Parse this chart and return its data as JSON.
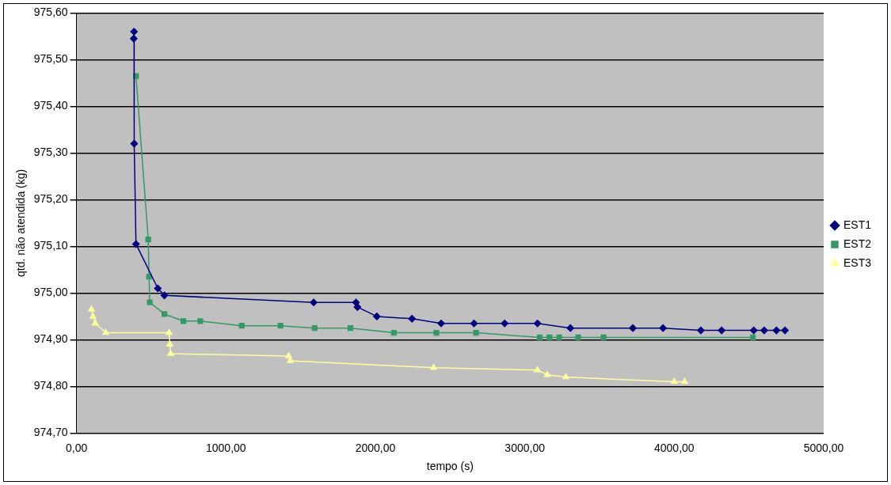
{
  "chart_data": {
    "type": "line",
    "xlabel": "tempo (s)",
    "ylabel": "qtd. não atendida (kg)",
    "xlim": [
      0,
      5000
    ],
    "ylim": [
      974.7,
      975.6
    ],
    "xticks": [
      {
        "value": 0,
        "label": "0,00"
      },
      {
        "value": 1000,
        "label": "1000,00"
      },
      {
        "value": 2000,
        "label": "2000,00"
      },
      {
        "value": 3000,
        "label": "3000,00"
      },
      {
        "value": 4000,
        "label": "4000,00"
      },
      {
        "value": 5000,
        "label": "5000,00"
      }
    ],
    "yticks": [
      {
        "value": 974.7,
        "label": "974,70"
      },
      {
        "value": 974.8,
        "label": "974,80"
      },
      {
        "value": 974.9,
        "label": "974,90"
      },
      {
        "value": 975.0,
        "label": "975,00"
      },
      {
        "value": 975.1,
        "label": "975,10"
      },
      {
        "value": 975.2,
        "label": "975,20"
      },
      {
        "value": 975.3,
        "label": "975,30"
      },
      {
        "value": 975.4,
        "label": "975,40"
      },
      {
        "value": 975.5,
        "label": "975,50"
      },
      {
        "value": 975.6,
        "label": "975,60"
      }
    ],
    "grid": "y",
    "legend": "right",
    "series": [
      {
        "name": "EST1",
        "color": "#000080",
        "marker": "diamond",
        "x": [
          383,
          385,
          386,
          398,
          544,
          588,
          1587,
          1870,
          1880,
          2010,
          2245,
          2440,
          2660,
          2865,
          3085,
          3305,
          3723,
          3925,
          4178,
          4317,
          4532,
          4602,
          4684,
          4741
        ],
        "values": [
          975.545,
          975.56,
          975.32,
          975.105,
          975.01,
          974.995,
          974.98,
          974.98,
          974.97,
          974.95,
          974.945,
          974.935,
          974.935,
          974.935,
          974.935,
          974.925,
          974.925,
          974.925,
          974.92,
          974.92,
          974.92,
          974.92,
          974.92,
          974.92
        ]
      },
      {
        "name": "EST2",
        "color": "#339966",
        "marker": "square",
        "x": [
          398,
          480,
          485,
          490,
          588,
          715,
          828,
          1106,
          1365,
          1593,
          1833,
          2124,
          2408,
          2674,
          3100,
          3165,
          3230,
          3357,
          3527,
          4526
        ],
        "values": [
          975.465,
          975.115,
          975.035,
          974.98,
          974.955,
          974.94,
          974.94,
          974.93,
          974.93,
          974.925,
          974.925,
          974.915,
          974.915,
          974.915,
          974.905,
          974.905,
          974.905,
          974.905,
          974.905,
          974.905
        ]
      },
      {
        "name": "EST3",
        "color": "#ffff99",
        "marker": "triangle",
        "x": [
          100,
          110,
          126,
          196,
          620,
          625,
          630,
          1420,
          1430,
          2390,
          3085,
          3150,
          3275,
          4000,
          4070
        ],
        "values": [
          974.965,
          974.95,
          974.935,
          974.915,
          974.915,
          974.89,
          974.87,
          974.865,
          974.855,
          974.84,
          974.835,
          974.825,
          974.82,
          974.81,
          974.81
        ]
      }
    ]
  }
}
